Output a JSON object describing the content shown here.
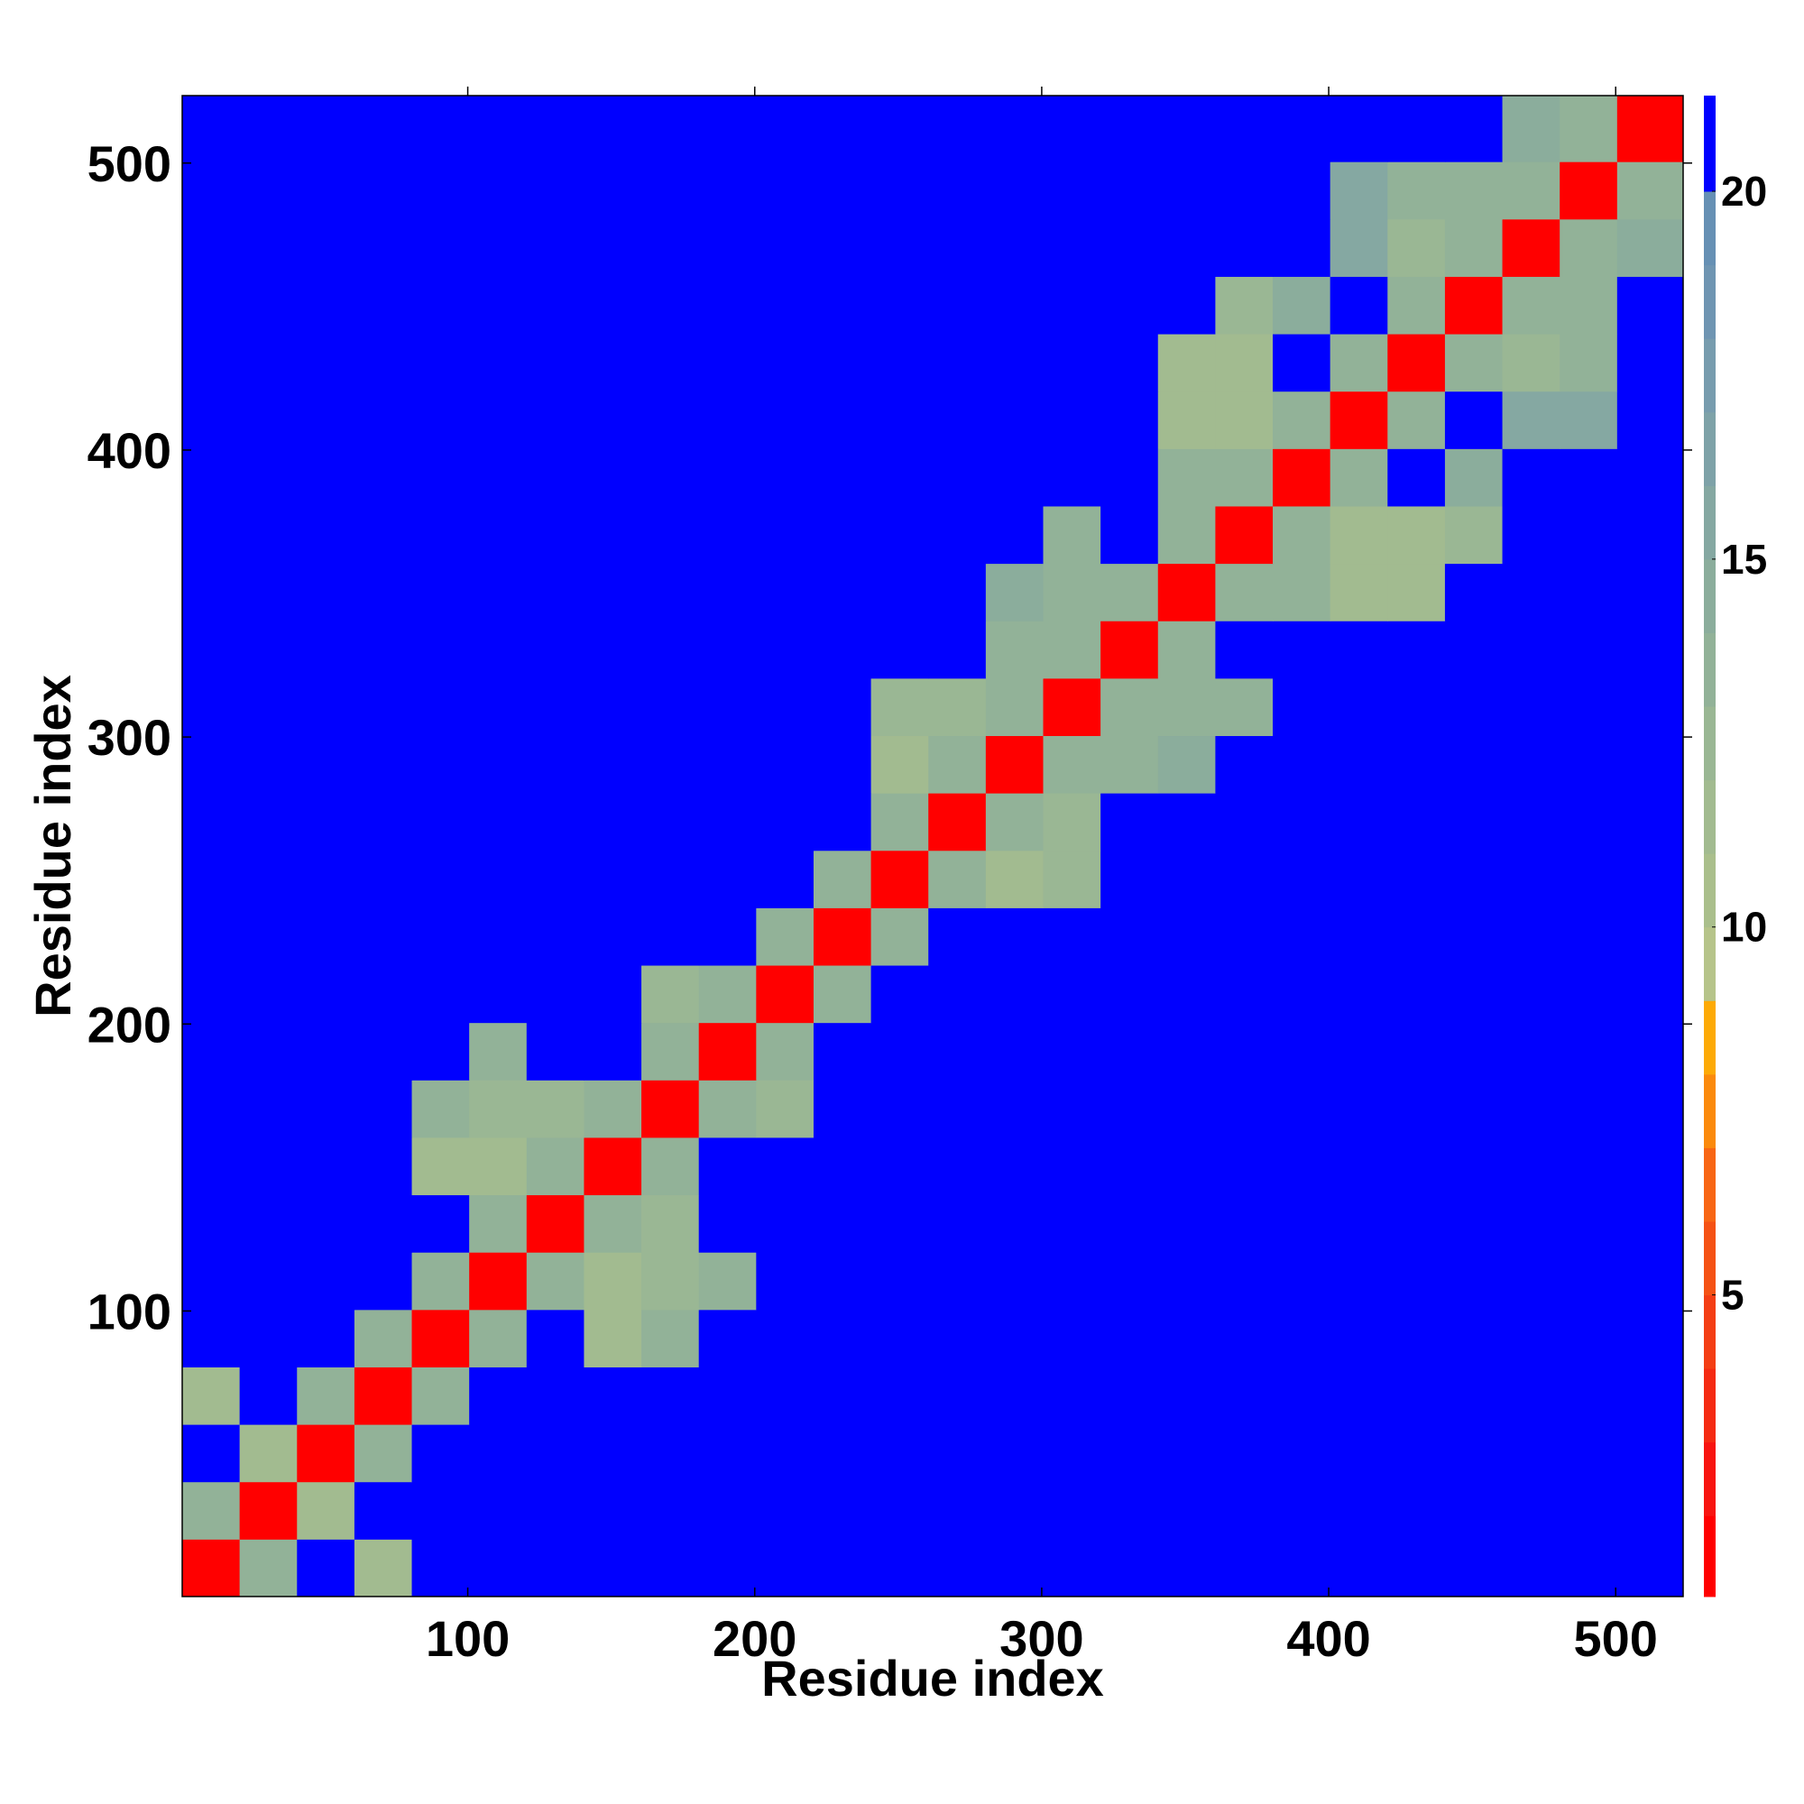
{
  "chart_data": {
    "type": "heatmap",
    "xlabel": "Residue index",
    "ylabel": "Residue index",
    "xlim": [
      0.5,
      523.5
    ],
    "ylim": [
      0.5,
      523.5
    ],
    "xticks": [
      100,
      200,
      300,
      400,
      500
    ],
    "yticks": [
      100,
      200,
      300,
      400,
      500
    ],
    "bins": [
      0.5,
      20.5,
      40.5,
      60.5,
      80.5,
      100.5,
      120.5,
      140.5,
      160.5,
      180.5,
      200.5,
      220.5,
      240.5,
      260.5,
      280.5,
      300.5,
      320.5,
      340.5,
      360.5,
      380.5,
      400.5,
      420.5,
      440.5,
      460.5,
      480.5,
      500.5,
      523.5
    ],
    "z": [
      [
        2,
        14,
        21,
        12,
        21,
        21,
        21,
        21,
        21,
        21,
        21,
        21,
        21,
        21,
        21,
        21,
        21,
        21,
        21,
        21,
        21,
        21,
        21,
        21,
        21,
        21
      ],
      [
        14,
        2,
        12,
        21,
        21,
        21,
        21,
        21,
        21,
        21,
        21,
        21,
        21,
        21,
        21,
        21,
        21,
        21,
        21,
        21,
        21,
        21,
        21,
        21,
        21,
        21
      ],
      [
        21,
        12,
        2,
        14,
        21,
        21,
        21,
        21,
        21,
        21,
        21,
        21,
        21,
        21,
        21,
        21,
        21,
        21,
        21,
        21,
        21,
        21,
        21,
        21,
        21,
        21
      ],
      [
        12,
        21,
        14,
        2,
        14,
        21,
        21,
        21,
        21,
        21,
        21,
        21,
        21,
        21,
        21,
        21,
        21,
        21,
        21,
        21,
        21,
        21,
        21,
        21,
        21,
        21
      ],
      [
        21,
        21,
        21,
        14,
        2,
        14,
        21,
        12,
        14,
        21,
        21,
        21,
        21,
        21,
        21,
        21,
        21,
        21,
        21,
        21,
        21,
        21,
        21,
        21,
        21,
        21
      ],
      [
        21,
        21,
        21,
        21,
        14,
        2,
        14,
        12,
        13,
        14,
        21,
        21,
        21,
        21,
        21,
        21,
        21,
        21,
        21,
        21,
        21,
        21,
        21,
        21,
        21,
        21
      ],
      [
        21,
        21,
        21,
        21,
        21,
        14,
        2,
        14,
        13,
        21,
        21,
        21,
        21,
        21,
        21,
        21,
        21,
        21,
        21,
        21,
        21,
        21,
        21,
        21,
        21,
        21
      ],
      [
        21,
        21,
        21,
        21,
        12,
        12,
        14,
        2,
        14,
        21,
        21,
        21,
        21,
        21,
        21,
        21,
        21,
        21,
        21,
        21,
        21,
        21,
        21,
        21,
        21,
        21
      ],
      [
        21,
        21,
        21,
        21,
        14,
        13,
        13,
        14,
        2,
        14,
        13,
        21,
        21,
        21,
        21,
        21,
        21,
        21,
        21,
        21,
        21,
        21,
        21,
        21,
        21,
        21
      ],
      [
        21,
        21,
        21,
        21,
        21,
        14,
        21,
        21,
        14,
        2,
        14,
        21,
        21,
        21,
        21,
        21,
        21,
        21,
        21,
        21,
        21,
        21,
        21,
        21,
        21,
        21
      ],
      [
        21,
        21,
        21,
        21,
        21,
        21,
        21,
        21,
        13,
        14,
        2,
        14,
        21,
        21,
        21,
        21,
        21,
        21,
        21,
        21,
        21,
        21,
        21,
        21,
        21,
        21
      ],
      [
        21,
        21,
        21,
        21,
        21,
        21,
        21,
        21,
        21,
        21,
        14,
        2,
        14,
        21,
        21,
        21,
        21,
        21,
        21,
        21,
        21,
        21,
        21,
        21,
        21,
        21
      ],
      [
        21,
        21,
        21,
        21,
        21,
        21,
        21,
        21,
        21,
        21,
        21,
        14,
        2,
        14,
        12,
        13,
        21,
        21,
        21,
        21,
        21,
        21,
        21,
        21,
        21,
        21
      ],
      [
        21,
        21,
        21,
        21,
        21,
        21,
        21,
        21,
        21,
        21,
        21,
        21,
        14,
        2,
        14,
        13,
        21,
        21,
        21,
        21,
        21,
        21,
        21,
        21,
        21,
        21
      ],
      [
        21,
        21,
        21,
        21,
        21,
        21,
        21,
        21,
        21,
        21,
        21,
        21,
        12,
        14,
        2,
        14,
        14,
        15,
        21,
        21,
        21,
        21,
        21,
        21,
        21,
        21
      ],
      [
        21,
        21,
        21,
        21,
        21,
        21,
        21,
        21,
        21,
        21,
        21,
        21,
        13,
        13,
        14,
        2,
        14,
        14,
        14,
        21,
        21,
        21,
        21,
        21,
        21,
        21
      ],
      [
        21,
        21,
        21,
        21,
        21,
        21,
        21,
        21,
        21,
        21,
        21,
        21,
        21,
        21,
        14,
        14,
        2,
        14,
        21,
        21,
        21,
        21,
        21,
        21,
        21,
        21
      ],
      [
        21,
        21,
        21,
        21,
        21,
        21,
        21,
        21,
        21,
        21,
        21,
        21,
        21,
        21,
        15,
        14,
        14,
        2,
        14,
        14,
        12,
        12,
        21,
        21,
        21,
        21
      ],
      [
        21,
        21,
        21,
        21,
        21,
        21,
        21,
        21,
        21,
        21,
        21,
        21,
        21,
        21,
        21,
        14,
        21,
        14,
        2,
        14,
        12,
        12,
        13,
        21,
        21,
        21
      ],
      [
        21,
        21,
        21,
        21,
        21,
        21,
        21,
        21,
        21,
        21,
        21,
        21,
        21,
        21,
        21,
        21,
        21,
        14,
        14,
        2,
        14,
        21,
        15,
        21,
        21,
        21
      ],
      [
        21,
        21,
        21,
        21,
        21,
        21,
        21,
        21,
        21,
        21,
        21,
        21,
        21,
        21,
        21,
        21,
        21,
        12,
        12,
        14,
        2,
        14,
        21,
        16,
        16,
        21
      ],
      [
        21,
        21,
        21,
        21,
        21,
        21,
        21,
        21,
        21,
        21,
        21,
        21,
        21,
        21,
        21,
        21,
        21,
        12,
        12,
        21,
        14,
        2,
        14,
        13,
        14,
        21
      ],
      [
        21,
        21,
        21,
        21,
        21,
        21,
        21,
        21,
        21,
        21,
        21,
        21,
        21,
        21,
        21,
        21,
        21,
        21,
        13,
        15,
        21,
        14,
        2,
        14,
        14,
        21
      ],
      [
        21,
        21,
        21,
        21,
        21,
        21,
        21,
        21,
        21,
        21,
        21,
        21,
        21,
        21,
        21,
        21,
        21,
        21,
        21,
        21,
        16,
        13,
        14,
        2,
        14,
        15
      ],
      [
        21,
        21,
        21,
        21,
        21,
        21,
        21,
        21,
        21,
        21,
        21,
        21,
        21,
        21,
        21,
        21,
        21,
        21,
        21,
        21,
        16,
        14,
        14,
        14,
        2,
        14
      ],
      [
        21,
        21,
        21,
        21,
        21,
        21,
        21,
        21,
        21,
        21,
        21,
        21,
        21,
        21,
        21,
        21,
        21,
        21,
        21,
        21,
        21,
        21,
        21,
        15,
        14,
        2
      ]
    ],
    "zlim": [
      0.9,
      21.3
    ],
    "zticks": [
      5,
      10,
      15,
      20
    ],
    "levels": [
      0.9,
      2,
      3,
      4,
      5,
      6,
      7,
      8,
      9,
      10,
      11,
      12,
      13,
      14,
      15,
      16,
      17,
      18,
      19,
      20,
      21.3
    ],
    "colors": [
      "#ff0000",
      "#f81410",
      "#f52a12",
      "#f43e14",
      "#f55214",
      "#f86614",
      "#fb8a0c",
      "#fdaa06",
      "#b6c48a",
      "#aabf8c",
      "#a2bb90",
      "#9ab794",
      "#92b298",
      "#8bad9c",
      "#85a8a2",
      "#7ea2a8",
      "#779cae",
      "#6f95b2",
      "#6690b4",
      "#0000ff"
    ]
  }
}
